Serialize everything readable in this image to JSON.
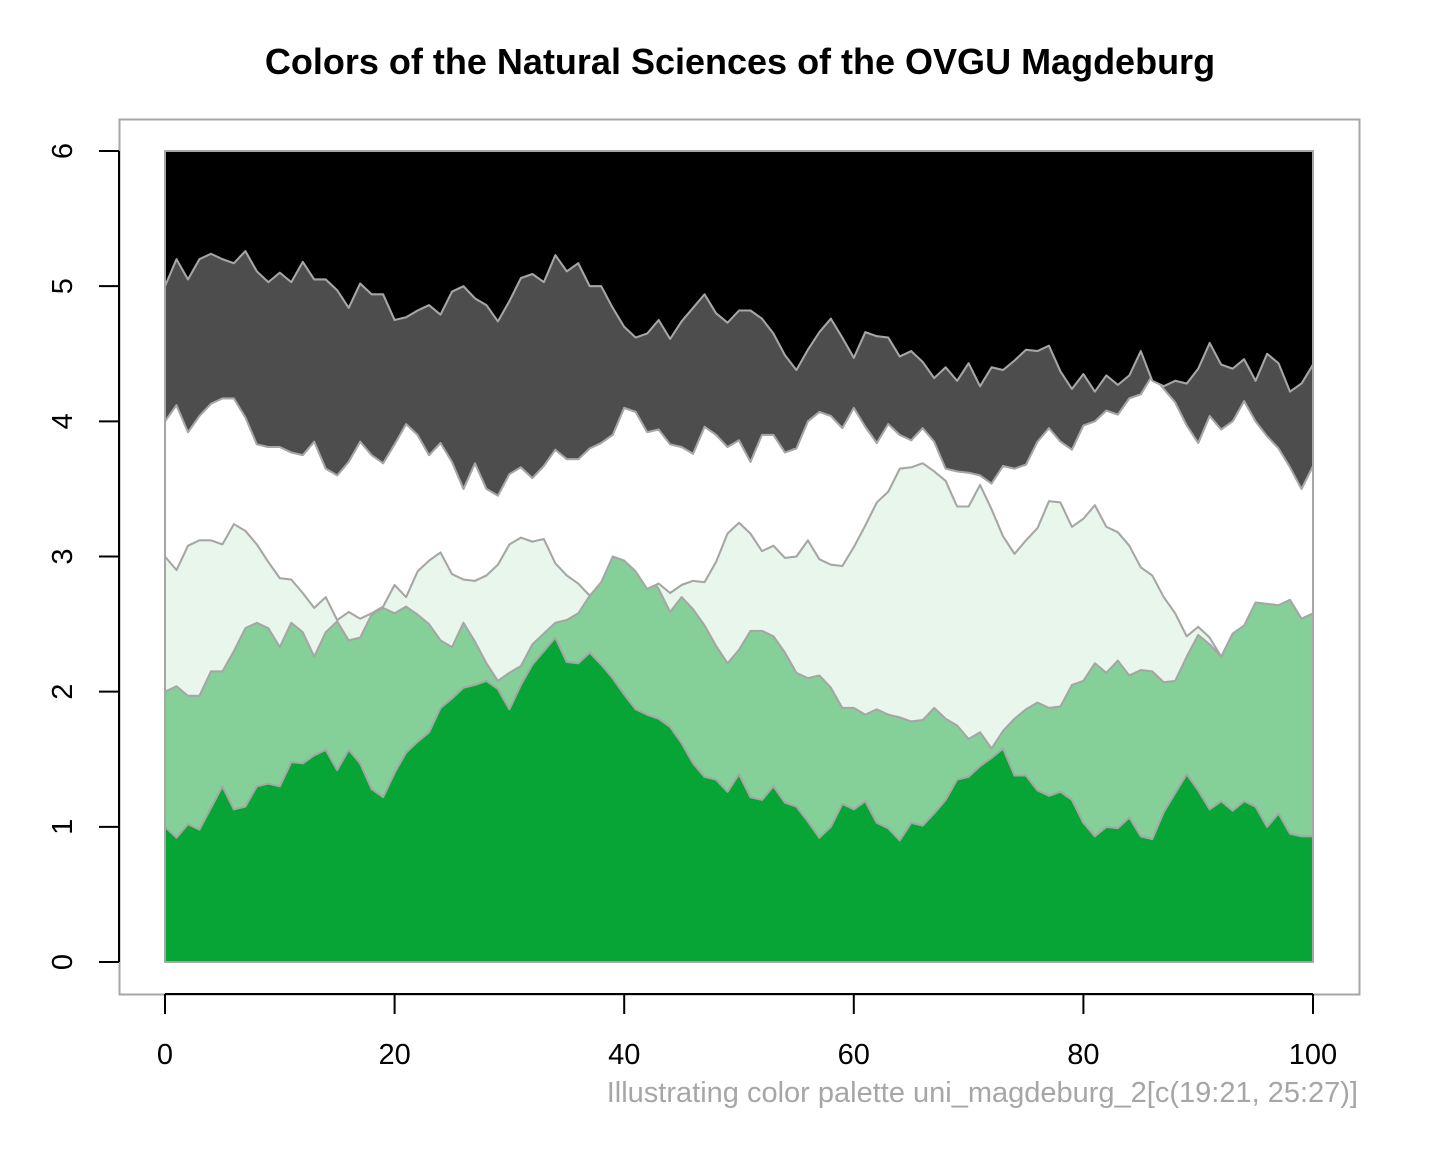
{
  "chart_data": {
    "type": "area",
    "stacked": true,
    "title": "Colors of the Natural Sciences of the OVGU Magdeburg",
    "caption": "Illustrating color palette uni_magdeburg_2[c(19:21, 25:27)]",
    "xlabel": "",
    "ylabel": "",
    "xlim": [
      0,
      100
    ],
    "ylim": [
      0,
      6
    ],
    "x_ticks": [
      0,
      20,
      40,
      60,
      80,
      100
    ],
    "y_ticks": [
      0,
      1,
      2,
      3,
      4,
      5,
      6
    ],
    "grid": false,
    "legend": "none",
    "x": [
      0,
      1,
      2,
      3,
      4,
      5,
      6,
      7,
      8,
      9,
      10,
      11,
      12,
      13,
      14,
      15,
      16,
      17,
      18,
      19,
      20,
      21,
      22,
      23,
      24,
      25,
      26,
      27,
      28,
      29,
      30,
      31,
      32,
      33,
      34,
      35,
      36,
      37,
      38,
      39,
      40,
      41,
      42,
      43,
      44,
      45,
      46,
      47,
      48,
      49,
      50,
      51,
      52,
      53,
      54,
      55,
      56,
      57,
      58,
      59,
      60,
      61,
      62,
      63,
      64,
      65,
      66,
      67,
      68,
      69,
      70,
      71,
      72,
      73,
      74,
      75,
      76,
      77,
      78,
      79,
      80,
      81,
      82,
      83,
      84,
      85,
      86,
      87,
      88,
      89,
      90,
      91,
      92,
      93,
      94,
      95,
      96,
      97,
      98,
      99,
      100
    ],
    "boundaries": [
      {
        "top_of": 1,
        "values": [
          1.0,
          0.92,
          1.02,
          0.98,
          1.14,
          1.3,
          1.13,
          1.15,
          1.3,
          1.32,
          1.3,
          1.48,
          1.47,
          1.53,
          1.57,
          1.42,
          1.57,
          1.47,
          1.28,
          1.22,
          1.4,
          1.55,
          1.63,
          1.7,
          1.88,
          1.95,
          2.03,
          2.05,
          2.08,
          2.02,
          1.87,
          2.05,
          2.2,
          2.3,
          2.4,
          2.22,
          2.21,
          2.29,
          2.2,
          2.1,
          1.98,
          1.87,
          1.83,
          1.8,
          1.74,
          1.62,
          1.47,
          1.37,
          1.35,
          1.26,
          1.39,
          1.22,
          1.2,
          1.3,
          1.18,
          1.15,
          1.04,
          0.92,
          1.0,
          1.17,
          1.13,
          1.19,
          1.03,
          0.99,
          0.9,
          1.03,
          1.01,
          1.1,
          1.2,
          1.35,
          1.37,
          1.45,
          1.51,
          1.58,
          1.38,
          1.38,
          1.27,
          1.23,
          1.26,
          1.2,
          1.03,
          0.93,
          1.0,
          0.99,
          1.07,
          0.93,
          0.91,
          1.11,
          1.25,
          1.39,
          1.27,
          1.13,
          1.19,
          1.12,
          1.19,
          1.15,
          1.0,
          1.1,
          0.95,
          0.93,
          0.93
        ]
      },
      {
        "top_of": 2,
        "values": [
          2.0,
          2.04,
          1.97,
          1.97,
          2.15,
          2.15,
          2.3,
          2.47,
          2.51,
          2.47,
          2.33,
          2.51,
          2.44,
          2.26,
          2.44,
          2.52,
          2.38,
          2.4,
          2.57,
          2.62,
          2.58,
          2.63,
          2.57,
          2.5,
          2.38,
          2.33,
          2.51,
          2.37,
          2.21,
          2.08,
          2.14,
          2.19,
          2.35,
          2.43,
          2.51,
          2.53,
          2.58,
          2.71,
          2.85,
          3.02,
          2.99,
          2.91,
          2.89,
          2.76,
          2.59,
          2.7,
          2.61,
          2.49,
          2.34,
          2.21,
          2.31,
          2.45,
          2.45,
          2.41,
          2.29,
          2.14,
          2.1,
          2.12,
          2.03,
          1.88,
          1.88,
          1.83,
          1.87,
          1.83,
          1.81,
          1.78,
          1.79,
          1.88,
          1.8,
          1.75,
          1.65,
          1.7,
          1.58,
          1.71,
          1.8,
          1.87,
          1.92,
          1.88,
          1.89,
          2.05,
          2.08,
          2.21,
          2.14,
          2.23,
          2.12,
          2.16,
          2.15,
          2.07,
          2.08,
          2.26,
          2.42,
          2.35,
          2.26,
          2.43,
          2.51,
          2.67,
          2.65,
          2.64,
          2.68,
          2.54,
          2.58
        ]
      },
      {
        "top_of": 3,
        "values": [
          3.0,
          2.9,
          3.08,
          3.12,
          3.12,
          3.09,
          3.24,
          3.19,
          3.09,
          2.96,
          2.84,
          2.83,
          2.73,
          2.62,
          2.7,
          2.53,
          2.59,
          2.54,
          2.58,
          2.63,
          2.79,
          2.7,
          2.89,
          2.97,
          3.03,
          2.87,
          2.83,
          2.82,
          2.86,
          2.94,
          3.09,
          3.14,
          3.11,
          3.13,
          2.95,
          2.86,
          2.8,
          2.71,
          2.81,
          3.0,
          2.97,
          2.89,
          2.76,
          2.8,
          2.73,
          2.79,
          2.82,
          2.81,
          2.96,
          3.17,
          3.25,
          3.17,
          3.04,
          3.08,
          2.99,
          3.0,
          3.12,
          2.98,
          2.94,
          2.93,
          3.07,
          3.23,
          3.4,
          3.48,
          3.65,
          3.66,
          3.69,
          3.63,
          3.56,
          3.37,
          3.37,
          3.53,
          3.35,
          3.15,
          3.02,
          3.12,
          3.21,
          3.41,
          3.4,
          3.22,
          3.28,
          3.38,
          3.22,
          3.18,
          3.08,
          2.92,
          2.86,
          2.7,
          2.58,
          2.41,
          2.48,
          2.4,
          2.26,
          2.43,
          2.49,
          2.66,
          2.65,
          2.64,
          2.68,
          2.54,
          2.58
        ]
      },
      {
        "top_of": 4,
        "values": [
          4.0,
          4.12,
          3.92,
          4.04,
          4.13,
          4.17,
          4.17,
          4.03,
          3.83,
          3.81,
          3.81,
          3.77,
          3.75,
          3.85,
          3.65,
          3.6,
          3.7,
          3.85,
          3.75,
          3.69,
          3.83,
          3.98,
          3.9,
          3.75,
          3.84,
          3.7,
          3.5,
          3.69,
          3.5,
          3.45,
          3.61,
          3.66,
          3.58,
          3.67,
          3.79,
          3.72,
          3.72,
          3.8,
          3.84,
          3.9,
          4.1,
          4.07,
          3.92,
          3.94,
          3.83,
          3.81,
          3.76,
          3.96,
          3.9,
          3.81,
          3.86,
          3.7,
          3.9,
          3.9,
          3.77,
          3.8,
          4.0,
          4.07,
          4.04,
          3.95,
          4.1,
          3.96,
          3.84,
          3.98,
          3.9,
          3.86,
          3.95,
          3.85,
          3.65,
          3.63,
          3.62,
          3.6,
          3.54,
          3.67,
          3.65,
          3.68,
          3.85,
          3.95,
          3.85,
          3.79,
          3.97,
          4.0,
          4.08,
          4.05,
          4.17,
          4.2,
          4.34,
          4.24,
          4.14,
          3.97,
          3.84,
          4.04,
          3.94,
          4.0,
          4.15,
          4.0,
          3.89,
          3.8,
          3.66,
          3.5,
          3.67
        ]
      },
      {
        "top_of": 5,
        "values": [
          5.0,
          5.2,
          5.05,
          5.2,
          5.24,
          5.2,
          5.17,
          5.26,
          5.11,
          5.03,
          5.1,
          5.03,
          5.18,
          5.05,
          5.05,
          4.97,
          4.84,
          5.02,
          4.94,
          4.94,
          4.75,
          4.77,
          4.82,
          4.86,
          4.79,
          4.96,
          5.0,
          4.91,
          4.86,
          4.74,
          4.89,
          5.06,
          5.09,
          5.03,
          5.23,
          5.11,
          5.17,
          5.0,
          5.0,
          4.84,
          4.7,
          4.62,
          4.65,
          4.75,
          4.61,
          4.74,
          4.84,
          4.94,
          4.8,
          4.73,
          4.82,
          4.82,
          4.76,
          4.65,
          4.49,
          4.38,
          4.53,
          4.66,
          4.76,
          4.62,
          4.47,
          4.66,
          4.63,
          4.62,
          4.48,
          4.52,
          4.44,
          4.32,
          4.4,
          4.3,
          4.43,
          4.26,
          4.4,
          4.38,
          4.45,
          4.53,
          4.52,
          4.56,
          4.37,
          4.24,
          4.35,
          4.22,
          4.34,
          4.27,
          4.34,
          4.52,
          4.3,
          4.26,
          4.3,
          4.28,
          4.39,
          4.58,
          4.42,
          4.39,
          4.46,
          4.3,
          4.5,
          4.43,
          4.22,
          4.28,
          4.42
        ]
      },
      {
        "top_of": 6,
        "values": [
          6.0,
          6.0,
          6.0,
          6.0,
          6.0,
          6.0,
          6.0,
          6.0,
          6.0,
          6.0,
          6.0,
          6.0,
          6.0,
          6.0,
          6.0,
          6.0,
          6.0,
          6.0,
          6.0,
          6.0,
          6.0,
          6.0,
          6.0,
          6.0,
          6.0,
          6.0,
          6.0,
          6.0,
          6.0,
          6.0,
          6.0,
          6.0,
          6.0,
          6.0,
          6.0,
          6.0,
          6.0,
          6.0,
          6.0,
          6.0,
          6.0,
          6.0,
          6.0,
          6.0,
          6.0,
          6.0,
          6.0,
          6.0,
          6.0,
          6.0,
          6.0,
          6.0,
          6.0,
          6.0,
          6.0,
          6.0,
          6.0,
          6.0,
          6.0,
          6.0,
          6.0,
          6.0,
          6.0,
          6.0,
          6.0,
          6.0,
          6.0,
          6.0,
          6.0,
          6.0,
          6.0,
          6.0,
          6.0,
          6.0,
          6.0,
          6.0,
          6.0,
          6.0,
          6.0,
          6.0,
          6.0,
          6.0,
          6.0,
          6.0,
          6.0,
          6.0,
          6.0,
          6.0,
          6.0,
          6.0,
          6.0,
          6.0,
          6.0,
          6.0,
          6.0,
          6.0,
          6.0,
          6.0,
          6.0,
          6.0,
          6.0
        ]
      }
    ],
    "layer_colors": [
      "#06a535",
      "#84d098",
      "#e9f6ec",
      "#ffffff",
      "#4d4d4d",
      "#000000"
    ],
    "outline_color": "#a6a6a6"
  }
}
